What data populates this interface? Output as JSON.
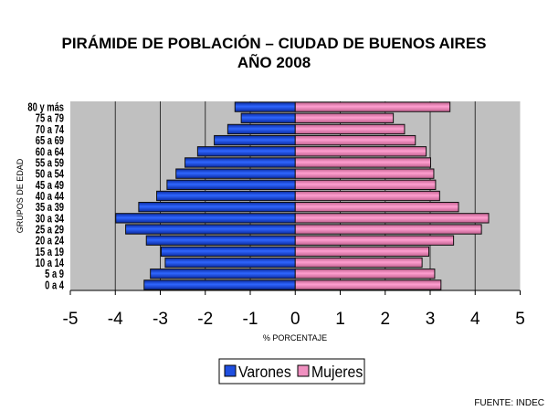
{
  "chart_data": {
    "type": "bar",
    "orientation": "horizontal",
    "title": "PIRÁMIDE DE POBLACIÓN – CIUDAD DE BUENOS AIRES",
    "subtitle": "AÑO 2008",
    "xlabel": "% PORCENTAJE",
    "ylabel": "GRUPOS DE EDAD",
    "xlim": [
      -5,
      5
    ],
    "xticks": [
      "-5",
      "-4",
      "-3",
      "-2",
      "-1",
      "0",
      "1",
      "2",
      "3",
      "4",
      "5"
    ],
    "categories": [
      "0 a 4",
      "5 a 9",
      "10 a 14",
      "15 a 19",
      "20 a 24",
      "25 a 29",
      "30 a 34",
      "35 a 39",
      "40 a 44",
      "45 a 49",
      "50 a 54",
      "55 a 59",
      "60 a 64",
      "65 a 69",
      "70 a 74",
      "75 a 79",
      "80 y más"
    ],
    "series": [
      {
        "name": "Varones",
        "color": "#1f4fe0",
        "values": [
          -3.36,
          -3.22,
          -2.89,
          -2.98,
          -3.31,
          -3.77,
          -3.99,
          -3.48,
          -3.08,
          -2.85,
          -2.65,
          -2.45,
          -2.17,
          -1.8,
          -1.5,
          -1.2,
          -1.34
        ]
      },
      {
        "name": "Mujeres",
        "color": "#f090c0",
        "values": [
          3.24,
          3.1,
          2.82,
          2.97,
          3.52,
          4.14,
          4.3,
          3.63,
          3.21,
          3.12,
          3.08,
          3.01,
          2.91,
          2.67,
          2.43,
          2.18,
          3.44
        ]
      }
    ],
    "grid": true,
    "legend": "bottom",
    "source": "FUENTE: INDEC"
  }
}
